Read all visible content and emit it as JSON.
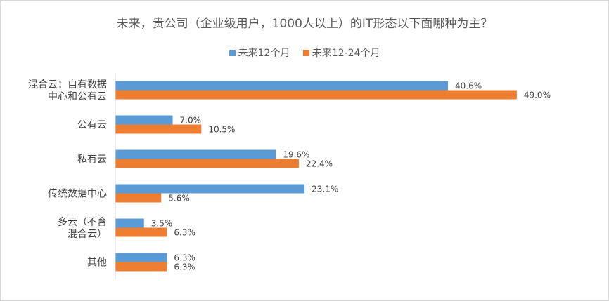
{
  "chart_data": {
    "type": "bar",
    "orientation": "horizontal",
    "title": "未来，贵公司（企业级用户，1000人以上）的IT形态以下面哪种为主？",
    "categories": [
      [
        "混合云：自有数据",
        "中心和公有云"
      ],
      [
        "公有云"
      ],
      [
        "私有云"
      ],
      [
        "传统数据中心"
      ],
      [
        "多云（不含",
        "混合云）"
      ],
      [
        "其他"
      ]
    ],
    "series": [
      {
        "name": "未来12个月",
        "color": "#5b9bd5",
        "values": [
          40.6,
          7.0,
          19.6,
          23.1,
          3.5,
          6.3
        ],
        "labels": [
          "40.6%",
          "7.0%",
          "19.6%",
          "23.1%",
          "3.5%",
          "6.3%"
        ]
      },
      {
        "name": "未来12-24个月",
        "color": "#ed7d31",
        "values": [
          49.0,
          10.5,
          22.4,
          5.6,
          6.3,
          6.3
        ],
        "labels": [
          "49.0%",
          "10.5%",
          "22.4%",
          "5.6%",
          "6.3%",
          "6.3%"
        ]
      }
    ],
    "xlim": [
      0,
      100
    ],
    "grid": false,
    "legend_position": "top"
  }
}
